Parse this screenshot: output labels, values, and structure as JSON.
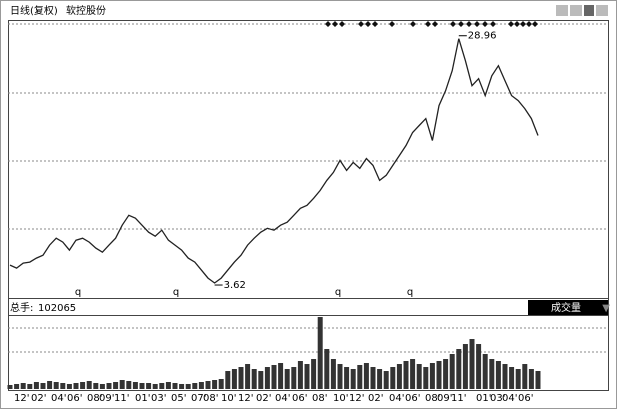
{
  "chart_data": {
    "type": "line",
    "title": "日线(复权)",
    "subtitle": "软控股份",
    "series": [
      {
        "name": "软控股份",
        "color": "#222222",
        "values": [
          5.48,
          5.17,
          5.69,
          5.79,
          6.2,
          6.51,
          7.55,
          8.27,
          7.86,
          7.03,
          8.06,
          8.27,
          7.86,
          7.24,
          6.82,
          7.55,
          8.27,
          9.62,
          10.65,
          10.34,
          9.62,
          8.89,
          8.48,
          9.1,
          8.06,
          7.55,
          7.03,
          6.2,
          5.79,
          4.96,
          4.13,
          3.62,
          4.13,
          4.96,
          5.79,
          6.51,
          7.55,
          8.27,
          8.89,
          9.3,
          9.1,
          9.62,
          9.93,
          10.65,
          11.37,
          11.68,
          12.41,
          13.23,
          14.27,
          15.1,
          16.34,
          15.3,
          16.13,
          15.51,
          16.54,
          15.82,
          14.27,
          14.79,
          15.82,
          16.85,
          17.89,
          19.23,
          19.96,
          20.68,
          18.4,
          22.02,
          23.57,
          25.64,
          28.96,
          26.68,
          24.09,
          24.81,
          23.06,
          25.12,
          26.16,
          24.61,
          23.06,
          22.54,
          21.71,
          20.68,
          18.92
        ]
      }
    ],
    "marked_points": [
      68,
      31
    ],
    "ylim": [
      2.17,
      30.8
    ],
    "event_markers": [
      "q",
      "q",
      "q",
      "q"
    ],
    "x_labels": [
      "12'",
      "02'",
      "04'",
      "06'",
      "08'",
      "09'",
      "11'",
      "01'",
      "03'",
      "05'",
      "07'",
      "08'",
      "10'",
      "12'",
      "02'",
      "04'",
      "06'",
      "08'",
      "10'",
      "12'",
      "02'",
      "04'",
      "06'",
      "08'",
      "09'",
      "11'",
      "01'",
      "03'",
      "04'",
      "06'"
    ],
    "volume": {
      "label": "总手:",
      "indicator": "成交量",
      "color": "#333333",
      "ylim": [
        0,
        414000
      ],
      "values": [
        22700,
        28400,
        34000,
        28400,
        39700,
        34000,
        45400,
        39700,
        34000,
        28400,
        34000,
        39700,
        45400,
        34000,
        28400,
        34000,
        39700,
        51000,
        45400,
        39700,
        34000,
        34000,
        28400,
        34000,
        39700,
        34000,
        28400,
        28400,
        34000,
        39700,
        45400,
        51000,
        56700,
        102000,
        113400,
        124700,
        141700,
        113400,
        102000,
        124700,
        136100,
        147400,
        113400,
        124700,
        158800,
        141700,
        170100,
        408200,
        226800,
        170100,
        141700,
        124700,
        113400,
        136100,
        147400,
        124700,
        113400,
        102000,
        124700,
        141700,
        158800,
        170100,
        141700,
        124700,
        147400,
        158800,
        170100,
        198500,
        226800,
        255100,
        283500,
        255100,
        198500,
        170100,
        158800,
        141700,
        124700,
        113400,
        141700,
        113400,
        102065
      ]
    }
  }
}
